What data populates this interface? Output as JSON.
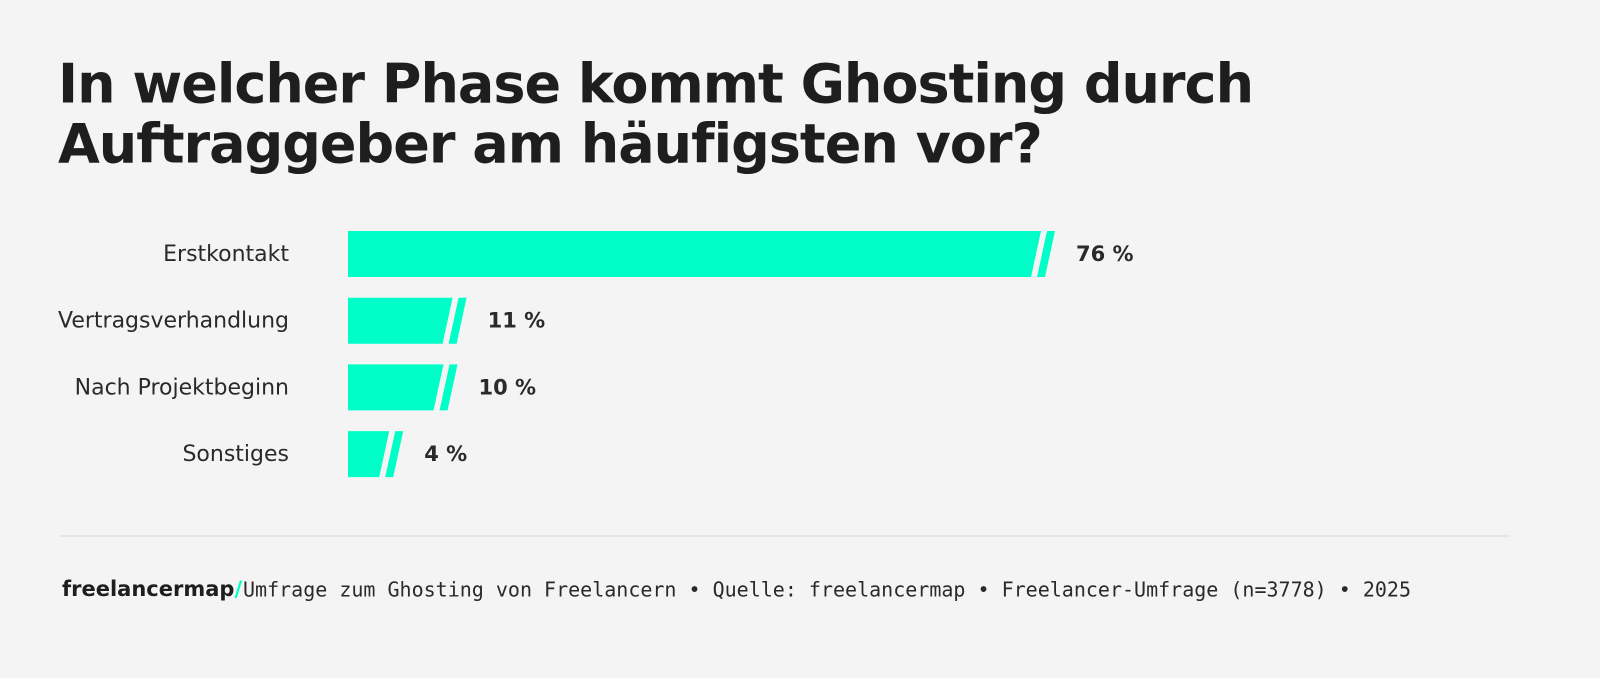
{
  "chart_data": {
    "type": "barh",
    "title": [
      "In welcher Phase kommt Ghosting durch",
      "Auftraggeber am häufigsten vor?"
    ],
    "categories": [
      "Erstkontakt",
      "Vertragsverhandlung",
      "Nach Projektbeginn",
      "Sonstiges"
    ],
    "values": [
      76,
      11,
      10,
      4
    ],
    "value_labels": [
      "76 %",
      "11 %",
      "10 %",
      "4 %"
    ],
    "color": "#00ffc8"
  },
  "footer": {
    "brand": "freelancermap",
    "brand_mark": "/",
    "source": "Umfrage zum Ghosting von Freelancern • Quelle: freelancermap • Freelancer-Umfrage (n=3778) • 2025"
  }
}
